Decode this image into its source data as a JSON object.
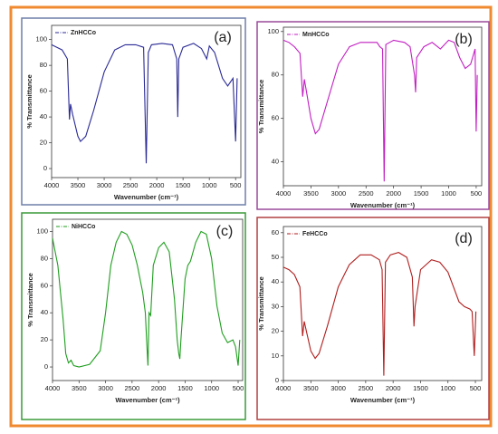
{
  "chart_data": [
    {
      "type": "line",
      "label": "(a)",
      "xlabel": "Wavenumber (cm⁻¹)",
      "ylabel": "% Transmittance",
      "frame_color": "#6f7fa8",
      "x": [
        4000,
        3900,
        3800,
        3700,
        3660,
        3640,
        3600,
        3500,
        3450,
        3350,
        3200,
        3000,
        2800,
        2600,
        2400,
        2250,
        2200,
        2160,
        2100,
        1900,
        1700,
        1620,
        1600,
        1580,
        1500,
        1300,
        1150,
        1050,
        1000,
        900,
        750,
        650,
        550,
        500,
        470
      ],
      "series": [
        {
          "name": "ZnHCCo",
          "color": "#2a2a96",
          "values": [
            96,
            94,
            92,
            85,
            38,
            50,
            42,
            25,
            21,
            25,
            45,
            75,
            92,
            96,
            96,
            94,
            4,
            90,
            96,
            97,
            96,
            85,
            40,
            85,
            94,
            97,
            93,
            85,
            95,
            90,
            70,
            64,
            70,
            21,
            70
          ]
        }
      ],
      "xlim": [
        4000,
        400
      ],
      "ylim": [
        -7,
        111
      ],
      "xticks": [
        4000,
        3500,
        3000,
        2500,
        2000,
        1500,
        1000,
        500
      ],
      "yticks": [
        0,
        20,
        40,
        60,
        80,
        100
      ]
    },
    {
      "type": "line",
      "label": "(b)",
      "xlabel": "Wavenumber (cm⁻¹)",
      "ylabel": "% Transmittance",
      "frame_color": "#9a4a9a",
      "x": [
        4000,
        3900,
        3800,
        3700,
        3650,
        3620,
        3580,
        3500,
        3420,
        3350,
        3200,
        3000,
        2800,
        2600,
        2300,
        2250,
        2200,
        2170,
        2140,
        2000,
        1800,
        1700,
        1620,
        1600,
        1580,
        1450,
        1300,
        1150,
        1000,
        900,
        800,
        700,
        600,
        520,
        500,
        480
      ],
      "series": [
        {
          "name": "MnHCCo",
          "color": "#c21fc2",
          "values": [
            96,
            95,
            93,
            90,
            70,
            78,
            72,
            60,
            53,
            55,
            68,
            85,
            93,
            95,
            95,
            93,
            92,
            31,
            94,
            96,
            95,
            93,
            80,
            72,
            88,
            93,
            95,
            92,
            96,
            95,
            88,
            83,
            85,
            92,
            54,
            80
          ]
        }
      ],
      "xlim": [
        4000,
        400
      ],
      "ylim": [
        29,
        102
      ],
      "xticks": [
        4000,
        3500,
        3000,
        2500,
        2000,
        1500,
        1000,
        500
      ],
      "yticks": [
        40,
        60,
        80,
        100
      ]
    },
    {
      "type": "line",
      "label": "(c)",
      "xlabel": "Wavenumber (cm⁻¹)",
      "ylabel": "% Transmittance",
      "frame_color": "#3a9a3a",
      "x": [
        4000,
        3900,
        3800,
        3750,
        3700,
        3650,
        3600,
        3500,
        3300,
        3100,
        3000,
        2900,
        2800,
        2700,
        2600,
        2500,
        2400,
        2300,
        2250,
        2220,
        2200,
        2180,
        2150,
        2100,
        2000,
        1900,
        1800,
        1700,
        1650,
        1620,
        1600,
        1580,
        1500,
        1450,
        1400,
        1300,
        1200,
        1100,
        1000,
        900,
        800,
        700,
        600,
        550,
        500,
        470
      ],
      "series": [
        {
          "name": "NiHCCo",
          "color": "#1f9e1f",
          "values": [
            95,
            75,
            35,
            10,
            3,
            5,
            1,
            0,
            2,
            12,
            40,
            75,
            92,
            100,
            98,
            90,
            75,
            55,
            40,
            15,
            1,
            40,
            38,
            75,
            88,
            92,
            85,
            50,
            20,
            10,
            6,
            20,
            65,
            75,
            78,
            92,
            100,
            98,
            80,
            45,
            25,
            18,
            20,
            15,
            1,
            20
          ]
        }
      ],
      "xlim": [
        4000,
        415
      ],
      "ylim": [
        -10,
        109
      ],
      "xticks": [
        4000,
        3500,
        3000,
        2500,
        2000,
        1500,
        1000,
        500
      ],
      "yticks": [
        0,
        20,
        40,
        60,
        80,
        100
      ]
    },
    {
      "type": "line",
      "label": "(d)",
      "xlabel": "Wavenumber (cm⁻¹)",
      "ylabel": "% Transmittance",
      "frame_color": "#b04040",
      "x": [
        4000,
        3900,
        3800,
        3700,
        3650,
        3620,
        3580,
        3500,
        3420,
        3350,
        3200,
        3000,
        2800,
        2600,
        2400,
        2250,
        2200,
        2170,
        2140,
        2050,
        1900,
        1750,
        1650,
        1620,
        1600,
        1500,
        1300,
        1150,
        1000,
        900,
        800,
        700,
        600,
        560,
        520,
        490
      ],
      "series": [
        {
          "name": "FeHCCo",
          "color": "#b01e1e",
          "values": [
            46,
            45,
            43,
            38,
            18,
            24,
            20,
            12,
            9,
            11,
            22,
            38,
            47,
            51,
            51,
            49,
            45,
            2,
            48,
            51,
            52,
            50,
            42,
            22,
            30,
            45,
            49,
            48,
            44,
            38,
            32,
            30,
            29,
            28,
            10,
            28
          ]
        }
      ],
      "xlim": [
        4000,
        385
      ],
      "ylim": [
        0,
        62.5
      ],
      "xticks": [
        4000,
        3500,
        3000,
        2500,
        2000,
        1500,
        1000,
        500
      ],
      "yticks": [
        0,
        10,
        20,
        30,
        40,
        50,
        60
      ]
    }
  ]
}
